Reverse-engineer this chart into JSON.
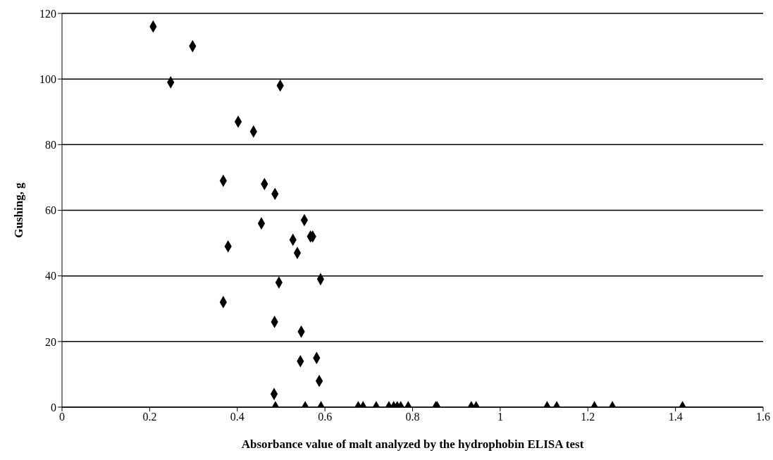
{
  "chart_data": {
    "type": "scatter",
    "xlabel": "Absorbance value of malt analyzed by the hydrophobin ELISA test",
    "ylabel": "Gushing, g",
    "x": [
      0.208,
      0.298,
      0.248,
      0.498,
      0.402,
      0.437,
      0.368,
      0.462,
      0.486,
      0.455,
      0.553,
      0.567,
      0.572,
      0.527,
      0.379,
      0.537,
      0.495,
      0.59,
      0.368,
      0.485,
      0.546,
      0.581,
      0.544,
      0.587,
      0.484,
      0.487,
      0.555,
      0.591,
      0.676,
      0.687,
      0.717,
      0.746,
      0.757,
      0.765,
      0.773,
      0.79,
      0.853,
      0.856,
      0.934,
      0.945,
      1.107,
      1.129,
      1.215,
      1.256,
      1.416
    ],
    "values": [
      116,
      110,
      99,
      98,
      87,
      84,
      69,
      68,
      65,
      56,
      57,
      52,
      52,
      51,
      49,
      47,
      38,
      39,
      32,
      26,
      23,
      15,
      14,
      8,
      4,
      0,
      0,
      0,
      0,
      0,
      0,
      0,
      0,
      0,
      0,
      0,
      0,
      0,
      0,
      0,
      0,
      0,
      0,
      0,
      0
    ],
    "color": "#000000",
    "marker": "diamond",
    "grid": "y",
    "xlim": [
      0,
      1.6
    ],
    "xticks": [
      0,
      0.2,
      0.4,
      0.6,
      0.8,
      1,
      1.2,
      1.4,
      1.6
    ],
    "ylim": [
      0,
      120
    ],
    "yticks": [
      0,
      20,
      40,
      60,
      80,
      100,
      120
    ]
  }
}
